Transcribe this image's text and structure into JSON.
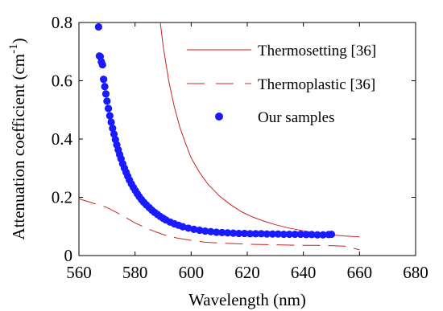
{
  "chart_data": {
    "type": "line",
    "title": "",
    "xlabel": "Wavelength (nm)",
    "ylabel_main": "Attenuation coefficient (cm",
    "ylabel_sup": "-1",
    "ylabel_close": ")",
    "xlim": [
      560,
      680
    ],
    "ylim": [
      0,
      0.8
    ],
    "x_ticks": [
      560,
      580,
      600,
      620,
      640,
      660,
      680
    ],
    "x_tick_labels": [
      "560",
      "580",
      "600",
      "620",
      "640",
      "660",
      "680"
    ],
    "y_ticks": [
      0,
      0.2,
      0.4,
      0.6,
      0.8
    ],
    "y_tick_labels": [
      "0",
      "0.2",
      "0.4",
      "0.6",
      "0.8"
    ],
    "grid": false,
    "legend_position": "top-right",
    "series": [
      {
        "name": "Thermosetting [36]",
        "style": "solid-line",
        "color": "#cc2222",
        "x": [
          589,
          590,
          592,
          594,
          596,
          598,
          600,
          603,
          606,
          610,
          614,
          618,
          622,
          626,
          630,
          635,
          640,
          645,
          650,
          655,
          660
        ],
        "y": [
          0.8,
          0.72,
          0.6,
          0.51,
          0.44,
          0.385,
          0.335,
          0.285,
          0.245,
          0.205,
          0.175,
          0.15,
          0.132,
          0.118,
          0.106,
          0.094,
          0.085,
          0.077,
          0.071,
          0.067,
          0.064
        ]
      },
      {
        "name": "Thermoplastic [36]",
        "style": "dashed-line",
        "color": "#cc2222",
        "x": [
          560,
          565,
          570,
          575,
          580,
          585,
          590,
          595,
          600,
          605,
          610,
          615,
          620,
          625,
          630,
          635,
          640,
          645,
          650,
          655,
          660
        ],
        "y": [
          0.195,
          0.18,
          0.165,
          0.14,
          0.112,
          0.09,
          0.072,
          0.06,
          0.052,
          0.046,
          0.043,
          0.041,
          0.039,
          0.038,
          0.037,
          0.036,
          0.035,
          0.035,
          0.034,
          0.032,
          0.02
        ]
      },
      {
        "name": "Our samples",
        "style": "markers",
        "color": "#1a1aff",
        "x": [
          567,
          567.3,
          567.6,
          568,
          568.4,
          568.8,
          569.2,
          569.6,
          570,
          570.5,
          571,
          571.5,
          572,
          572.5,
          573,
          573.5,
          574,
          574.5,
          575,
          575.6,
          576.2,
          576.8,
          577.4,
          578,
          578.7,
          579.4,
          580.1,
          580.8,
          581.5,
          582.3,
          583.1,
          584,
          585,
          586,
          587,
          588,
          589,
          590,
          591,
          592.5,
          594,
          595.5,
          597,
          599,
          601,
          603,
          605,
          607,
          609,
          611,
          613,
          615,
          617,
          619,
          621,
          623,
          625,
          627,
          629,
          631,
          633,
          635,
          637,
          639,
          641,
          643,
          645,
          647,
          649,
          650
        ],
        "y": [
          0.785,
          0.685,
          0.683,
          0.665,
          0.655,
          0.605,
          0.58,
          0.555,
          0.53,
          0.505,
          0.48,
          0.458,
          0.437,
          0.417,
          0.398,
          0.38,
          0.363,
          0.347,
          0.332,
          0.315,
          0.3,
          0.286,
          0.272,
          0.259,
          0.246,
          0.234,
          0.223,
          0.212,
          0.202,
          0.192,
          0.183,
          0.174,
          0.165,
          0.156,
          0.148,
          0.141,
          0.134,
          0.128,
          0.122,
          0.115,
          0.109,
          0.104,
          0.099,
          0.094,
          0.09,
          0.087,
          0.084,
          0.082,
          0.08,
          0.079,
          0.078,
          0.077,
          0.076,
          0.076,
          0.075,
          0.075,
          0.075,
          0.074,
          0.074,
          0.074,
          0.073,
          0.073,
          0.073,
          0.073,
          0.072,
          0.072,
          0.071,
          0.071,
          0.072,
          0.073
        ]
      }
    ]
  }
}
